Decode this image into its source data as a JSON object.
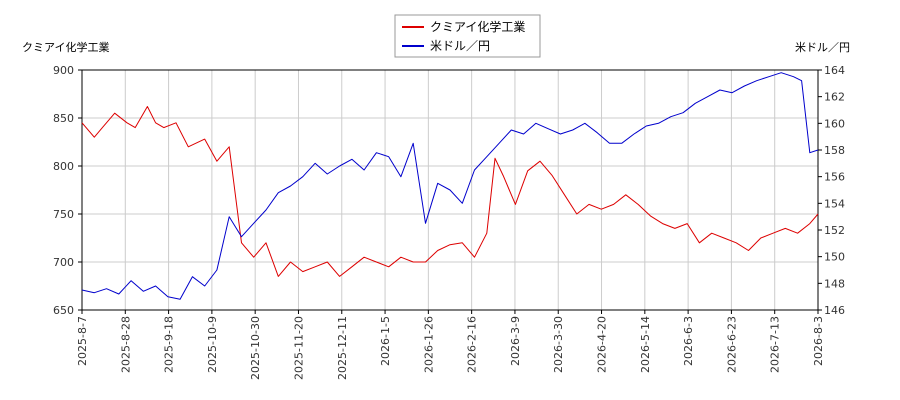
{
  "chart_data": {
    "type": "line",
    "title": "",
    "legend_position": "top-center",
    "grid": true,
    "y_left_label": "クミアイ化学工業",
    "y_right_label": "米ドル／円",
    "y_left_ticks": [
      "900",
      "850",
      "800",
      "750",
      "700",
      "650"
    ],
    "y_left_range": [
      650,
      900
    ],
    "y_right_ticks": [
      "164",
      "162",
      "160",
      "158",
      "156",
      "154",
      "152",
      "150",
      "148",
      "146"
    ],
    "y_right_range": [
      146,
      164
    ],
    "x_ticks": [
      "2025-8-7",
      "2025-8-28",
      "2025-9-18",
      "2025-10-9",
      "2025-10-30",
      "2025-11-20",
      "2025-12-11",
      "2026-1-5",
      "2026-1-26",
      "2026-2-16",
      "2026-3-9",
      "2026-3-30",
      "2026-4-20",
      "2026-5-14",
      "2026-6-3",
      "2026-6-23",
      "2026-7-13",
      "2026-8-3"
    ],
    "x_range": [
      0,
      18
    ],
    "series": [
      {
        "name": "クミアイ化学工業",
        "axis": "left",
        "color": "#dd0000",
        "x": [
          0,
          0.3,
          0.5,
          0.8,
          1.1,
          1.3,
          1.6,
          1.8,
          2.0,
          2.3,
          2.6,
          3.0,
          3.3,
          3.6,
          3.9,
          4.2,
          4.5,
          4.8,
          5.1,
          5.4,
          5.7,
          6.0,
          6.3,
          6.6,
          6.9,
          7.2,
          7.5,
          7.8,
          8.1,
          8.4,
          8.7,
          9.0,
          9.3,
          9.6,
          9.9,
          10.1,
          10.3,
          10.6,
          10.9,
          11.2,
          11.5,
          11.8,
          12.1,
          12.4,
          12.7,
          13.0,
          13.3,
          13.6,
          13.9,
          14.2,
          14.5,
          14.8,
          15.1,
          15.4,
          15.7,
          16.0,
          16.3,
          16.6,
          16.9,
          17.2,
          17.5,
          17.8,
          18.0
        ],
        "y": [
          845,
          830,
          840,
          855,
          845,
          840,
          862,
          845,
          840,
          845,
          820,
          828,
          805,
          820,
          720,
          705,
          720,
          685,
          700,
          690,
          695,
          700,
          685,
          695,
          705,
          700,
          695,
          705,
          700,
          700,
          712,
          718,
          720,
          705,
          730,
          808,
          790,
          760,
          795,
          805,
          790,
          770,
          750,
          760,
          755,
          760,
          770,
          760,
          748,
          740,
          735,
          740,
          720,
          730,
          725,
          720,
          712,
          725,
          730,
          735,
          730,
          740,
          750
        ]
      },
      {
        "name": "米ドル／円",
        "axis": "right",
        "color": "#0000cc",
        "x": [
          0,
          0.3,
          0.6,
          0.9,
          1.2,
          1.5,
          1.8,
          2.1,
          2.4,
          2.7,
          3.0,
          3.3,
          3.6,
          3.9,
          4.2,
          4.5,
          4.8,
          5.1,
          5.4,
          5.7,
          6.0,
          6.3,
          6.6,
          6.9,
          7.2,
          7.5,
          7.8,
          8.1,
          8.4,
          8.7,
          9.0,
          9.3,
          9.6,
          9.9,
          10.2,
          10.5,
          10.8,
          11.1,
          11.4,
          11.7,
          12.0,
          12.3,
          12.6,
          12.9,
          13.2,
          13.5,
          13.8,
          14.1,
          14.4,
          14.7,
          15.0,
          15.3,
          15.6,
          15.9,
          16.2,
          16.5,
          16.8,
          17.1,
          17.4,
          17.6,
          17.8,
          18.0
        ],
        "y": [
          147.5,
          147.3,
          147.6,
          147.2,
          148.2,
          147.4,
          147.8,
          147.0,
          146.8,
          148.5,
          147.8,
          149.0,
          153.0,
          151.5,
          152.5,
          153.5,
          154.8,
          155.3,
          156.0,
          157.0,
          156.2,
          156.8,
          157.3,
          156.5,
          157.8,
          157.5,
          156.0,
          158.5,
          152.5,
          155.5,
          155.0,
          154.0,
          156.5,
          157.5,
          158.5,
          159.5,
          159.2,
          160.0,
          159.6,
          159.2,
          159.5,
          160.0,
          159.3,
          158.5,
          158.5,
          159.2,
          159.8,
          160.0,
          160.5,
          160.8,
          161.5,
          162.0,
          162.5,
          162.3,
          162.8,
          163.2,
          163.5,
          163.8,
          163.5,
          163.2,
          157.8,
          158.0
        ]
      }
    ]
  }
}
